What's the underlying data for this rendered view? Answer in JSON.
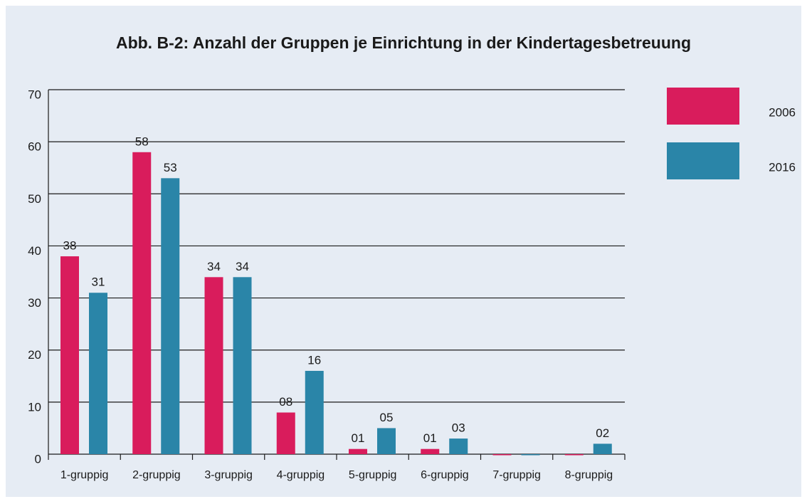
{
  "chart_data": {
    "type": "bar",
    "title": "Abb. B-2: Anzahl der Gruppen je Einrichtung in der Kindertagesbetreuung",
    "categories": [
      "1-gruppig",
      "2-gruppig",
      "3-gruppig",
      "4-gruppig",
      "5-gruppig",
      "6-gruppig",
      "7-gruppig",
      "8-gruppig"
    ],
    "series": [
      {
        "name": "2006",
        "color": "#d91c5c",
        "values": [
          38,
          58,
          34,
          8,
          1,
          1,
          0,
          0
        ],
        "value_labels": [
          "38",
          "58",
          "34",
          "08",
          "01",
          "01",
          null,
          null
        ]
      },
      {
        "name": "2016",
        "color": "#2a85a8",
        "values": [
          31,
          53,
          34,
          16,
          5,
          3,
          0,
          2
        ],
        "value_labels": [
          "31",
          "53",
          "34",
          "16",
          "05",
          "03",
          null,
          "02"
        ]
      }
    ],
    "ylim": [
      0,
      70
    ],
    "yticks": [
      0,
      10,
      20,
      30,
      40,
      50,
      60,
      70
    ],
    "grid": true,
    "legend": "right"
  }
}
